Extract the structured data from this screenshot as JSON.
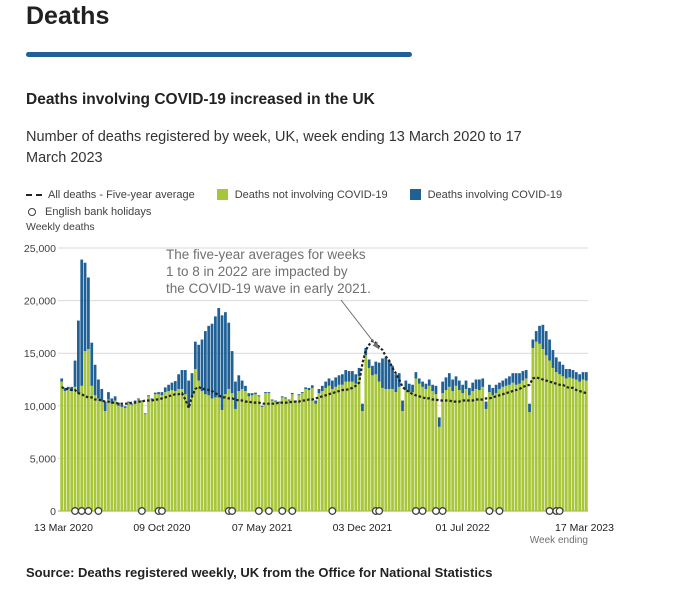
{
  "page": {
    "section_title": "Deaths",
    "source": "Source: Deaths registered weekly, UK from the Office for National Statistics"
  },
  "chart_data": {
    "type": "bar",
    "stacked": true,
    "title": "Deaths involving COVID-19 increased in the UK",
    "subtitle": "Number of deaths registered by week, UK, week ending 13 March 2020 to 17 March 2023",
    "ylabel": "Weekly deaths",
    "xlabel": "Week ending",
    "ylim": [
      0,
      25000
    ],
    "yticks": [
      0,
      5000,
      10000,
      15000,
      20000,
      25000
    ],
    "ytick_labels": [
      "0",
      "5,000",
      "10,000",
      "15,000",
      "20,000",
      "25,000"
    ],
    "xtick_labels": [
      {
        "week": 0,
        "label": "13 Mar 2020"
      },
      {
        "week": 30,
        "label": "09 Oct 2020"
      },
      {
        "week": 60,
        "label": "07 May 2021"
      },
      {
        "week": 90,
        "label": "03 Dec 2021"
      },
      {
        "week": 120,
        "label": "01 Jul 2022"
      },
      {
        "week": 157,
        "label": "17 Mar 2023"
      }
    ],
    "legend_position": "top",
    "legend": {
      "average": "All deaths - Five-year average",
      "not_covid": "Deaths not involving COVID-19",
      "covid": "Deaths involving COVID-19",
      "holidays": "English bank holidays"
    },
    "colors": {
      "not_covid": "#a8c639",
      "covid": "#206095",
      "average": "#222222",
      "grid": "#d9d9d9"
    },
    "annotation": {
      "text_lines": [
        "The five-year averages for weeks",
        "1 to 8 in 2022 are impacted by",
        "the COVID-19 wave in early 2021."
      ],
      "target_week": 95,
      "target_value": 15100
    },
    "not_covid": [
      12300,
      11400,
      11600,
      11400,
      11800,
      11200,
      11900,
      15200,
      15400,
      11900,
      11000,
      10700,
      10400,
      9500,
      10600,
      10200,
      10500,
      10000,
      9900,
      9800,
      10300,
      10100,
      10400,
      10600,
      10400,
      9200,
      10900,
      10600,
      11100,
      11100,
      11000,
      11300,
      11400,
      11500,
      11400,
      11600,
      11600,
      11100,
      9800,
      10800,
      13500,
      12400,
      11400,
      11100,
      11000,
      10700,
      10800,
      10800,
      9600,
      11100,
      11600,
      11200,
      9700,
      11400,
      11600,
      11400,
      10900,
      11000,
      11100,
      10900,
      9900,
      11200,
      11200,
      10500,
      10400,
      10300,
      10800,
      10700,
      10500,
      11100,
      10400,
      11000,
      11200,
      11600,
      11500,
      11700,
      10200,
      11200,
      11400,
      11700,
      11900,
      11600,
      11800,
      12000,
      12000,
      12300,
      12300,
      12300,
      12100,
      12800,
      9500,
      14800,
      13600,
      12900,
      13000,
      12300,
      11700,
      11600,
      11600,
      11600,
      11300,
      11800,
      9500,
      11500,
      11300,
      11300,
      12600,
      12100,
      11800,
      11600,
      11900,
      11400,
      11100,
      8000,
      11200,
      11500,
      11800,
      11400,
      11900,
      11500,
      11200,
      11600,
      11000,
      11400,
      11600,
      11500,
      11800,
      9700,
      11300,
      11000,
      11200,
      11600,
      11800,
      11900,
      12000,
      12200,
      12000,
      12100,
      12400,
      12600,
      9400,
      15500,
      16100,
      15900,
      15400,
      14800,
      14300,
      13600,
      13200,
      13000,
      12800,
      12600,
      12700,
      12600,
      12500,
      12300,
      12500,
      12400
    ],
    "covid": [
      300,
      300,
      200,
      400,
      2500,
      6900,
      12000,
      8400,
      6800,
      4100,
      2900,
      1800,
      1200,
      900,
      700,
      500,
      400,
      300,
      200,
      150,
      100,
      100,
      100,
      100,
      100,
      80,
      100,
      100,
      150,
      200,
      300,
      450,
      600,
      700,
      950,
      1400,
      1800,
      2300,
      2600,
      2300,
      2600,
      3400,
      4900,
      6000,
      6600,
      7100,
      7700,
      8500,
      9000,
      7800,
      6300,
      4000,
      2600,
      1500,
      800,
      500,
      300,
      200,
      150,
      100,
      100,
      100,
      100,
      100,
      100,
      100,
      100,
      100,
      100,
      120,
      100,
      100,
      100,
      150,
      200,
      250,
      300,
      400,
      500,
      600,
      700,
      800,
      900,
      900,
      1000,
      1100,
      1000,
      1000,
      900,
      800,
      700,
      700,
      800,
      900,
      1200,
      1800,
      2800,
      3000,
      2700,
      2200,
      1700,
      1300,
      1000,
      900,
      800,
      700,
      600,
      500,
      500,
      500,
      600,
      600,
      800,
      900,
      1100,
      1200,
      1300,
      1100,
      900,
      900,
      800,
      800,
      700,
      800,
      900,
      1000,
      800,
      700,
      700,
      700,
      800,
      600,
      600,
      700,
      800,
      900,
      1100,
      1000,
      900,
      800,
      800,
      800,
      1000,
      1700,
      2300,
      2300,
      2000,
      1700,
      1400,
      1200,
      1100,
      900,
      800,
      800,
      700,
      700,
      700,
      800,
      900
    ],
    "five_year_avg": [
      11800,
      11600,
      11600,
      11500,
      11500,
      11200,
      11100,
      10900,
      10800,
      10800,
      10600,
      10600,
      10500,
      10400,
      10400,
      10300,
      10300,
      10200,
      10200,
      10200,
      10200,
      10300,
      10300,
      10400,
      10400,
      10500,
      10500,
      10500,
      10600,
      10600,
      10700,
      10800,
      10900,
      11000,
      11100,
      11100,
      11200,
      10600,
      9800,
      10900,
      11600,
      11800,
      11600,
      11600,
      11500,
      11400,
      11200,
      11000,
      10800,
      10800,
      10700,
      10700,
      10600,
      10500,
      10500,
      10400,
      10400,
      10300,
      10300,
      10300,
      10200,
      10200,
      10200,
      10200,
      10200,
      10300,
      10300,
      10300,
      10300,
      10400,
      10400,
      10400,
      10500,
      10500,
      10600,
      10600,
      10700,
      10800,
      10900,
      11000,
      11100,
      11200,
      11300,
      11400,
      11500,
      11500,
      11600,
      11700,
      11900,
      12200,
      14000,
      15300,
      15800,
      16200,
      16000,
      15600,
      15300,
      14700,
      14300,
      13600,
      13100,
      12500,
      11800,
      11500,
      11300,
      11100,
      11000,
      10900,
      10800,
      10700,
      10700,
      10600,
      10600,
      10500,
      10500,
      10500,
      10500,
      10400,
      10400,
      10400,
      10500,
      10500,
      10500,
      10500,
      10600,
      10600,
      10600,
      10700,
      10700,
      10800,
      10900,
      11000,
      11100,
      11200,
      11300,
      11400,
      11500,
      11600,
      11800,
      11900,
      12000,
      12600,
      12700,
      12600,
      12500,
      12400,
      12300,
      12200,
      12100,
      12000,
      12000,
      11800,
      11700,
      11700,
      11500,
      11400,
      11300,
      11200
    ],
    "bank_holiday_weeks": [
      4,
      6,
      8,
      11,
      24,
      29,
      30,
      50,
      51,
      59,
      62,
      66,
      69,
      81,
      94,
      95,
      106,
      108,
      112,
      114,
      128,
      131,
      146,
      148,
      149
    ]
  }
}
